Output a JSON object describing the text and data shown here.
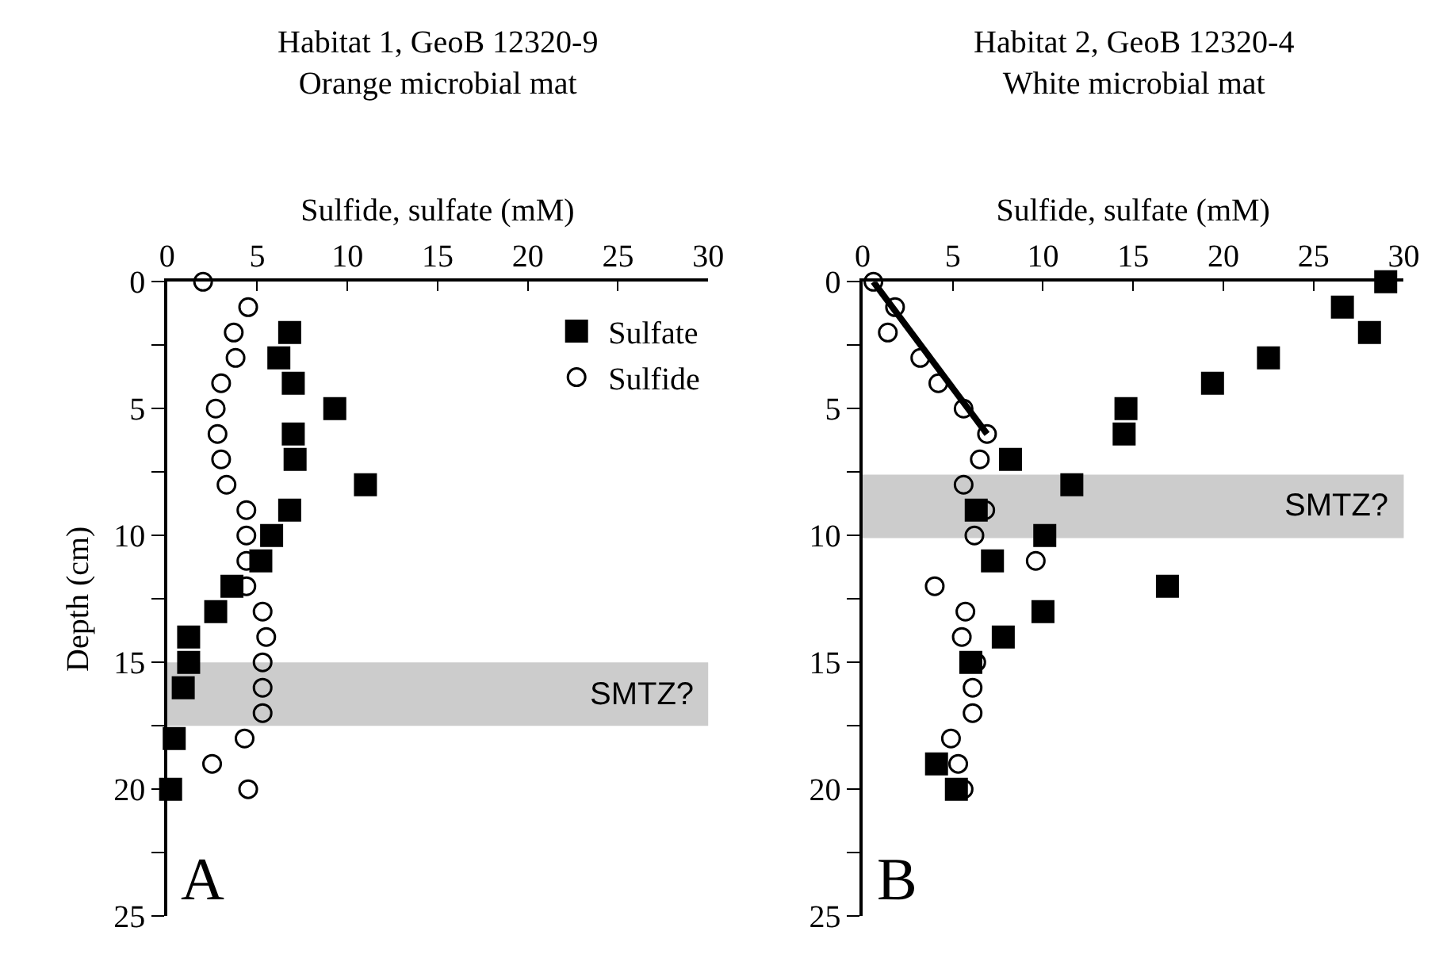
{
  "chart_data": [
    {
      "type": "scatter",
      "title": "Habitat 1, GeoB 12320-9\nOrange microbial mat",
      "xlabel": "Sulfide, sulfate (mM)",
      "ylabel": "Depth (cm)",
      "xlim": [
        0,
        30
      ],
      "xticks": [
        0,
        5,
        10,
        15,
        20,
        25,
        30
      ],
      "ylim": [
        25,
        0
      ],
      "yticks": [
        0,
        {
          "value": 2.5,
          "label": null
        },
        5,
        {
          "value": 7.5,
          "label": null
        },
        10,
        {
          "value": 12.5,
          "label": null
        },
        15,
        {
          "value": 17.5,
          "label": null
        },
        20,
        {
          "value": 22.5,
          "label": null
        },
        25
      ],
      "grid": false,
      "legend": "top right",
      "series": [
        {
          "name": "Sulfate",
          "color": "#000000",
          "marker": "square",
          "x": [
            6.8,
            6.2,
            7.0,
            9.3,
            7.0,
            7.1,
            11.0,
            6.8,
            5.8,
            5.2,
            3.6,
            2.7,
            1.2,
            1.2,
            0.9,
            0.4,
            0.2
          ],
          "values": [
            2,
            3,
            4,
            5,
            6,
            7,
            8,
            9,
            10,
            11,
            12,
            13,
            14,
            15,
            16,
            18,
            20
          ]
        },
        {
          "name": "Sulfide",
          "color": "#000000",
          "marker": "circle",
          "x": [
            2.0,
            4.5,
            3.7,
            3.8,
            3.0,
            2.7,
            2.8,
            3.0,
            3.3,
            4.4,
            4.4,
            4.4,
            4.4,
            5.3,
            5.5,
            5.3,
            5.3,
            5.3,
            4.3,
            2.5,
            4.5
          ],
          "values": [
            0,
            1,
            2,
            3,
            4,
            5,
            6,
            7,
            8,
            9,
            10,
            11,
            12,
            13,
            14,
            15,
            16,
            17,
            18,
            19,
            20
          ]
        }
      ],
      "bands": [
        {
          "axis": "y",
          "from": 15,
          "to": 17.5,
          "label": "SMTZ?",
          "color": "#cccccc"
        }
      ],
      "annotations": [
        "A"
      ]
    },
    {
      "type": "scatter",
      "title": "Habitat 2, GeoB 12320-4\nWhite microbial mat",
      "xlabel": "Sulfide, sulfate (mM)",
      "xlim": [
        0,
        30
      ],
      "xticks": [
        0,
        5,
        10,
        15,
        20,
        25,
        30
      ],
      "ylim": [
        25,
        0
      ],
      "yticks": [
        0,
        {
          "value": 2.5,
          "label": null
        },
        5,
        {
          "value": 7.5,
          "label": null
        },
        10,
        {
          "value": 12.5,
          "label": null
        },
        15,
        {
          "value": 17.5,
          "label": null
        },
        20,
        {
          "value": 22.5,
          "label": null
        },
        25
      ],
      "grid": false,
      "series": [
        {
          "color": "#000000",
          "marker": "square",
          "x": [
            29.0,
            26.6,
            28.1,
            22.5,
            19.4,
            14.6,
            14.5,
            8.2,
            11.6,
            6.3,
            10.1,
            7.2,
            16.9,
            10.0,
            7.8,
            6.0,
            4.1,
            5.2
          ],
          "values": [
            0,
            1,
            2,
            3,
            4,
            5,
            6,
            7,
            8,
            9,
            10,
            11,
            12,
            13,
            14,
            15,
            19,
            20
          ]
        },
        {
          "color": "#000000",
          "marker": "circle",
          "x": [
            0.6,
            1.8,
            1.4,
            3.2,
            4.2,
            5.6,
            6.9,
            6.5,
            5.6,
            6.8,
            6.2,
            9.6,
            4.0,
            5.7,
            5.5,
            6.3,
            6.1,
            6.1,
            4.9,
            5.3,
            5.6
          ],
          "values": [
            0,
            1,
            2,
            3,
            4,
            5,
            6,
            7,
            8,
            9,
            10,
            11,
            12,
            13,
            14,
            15,
            16,
            17,
            18,
            19,
            20
          ]
        },
        {
          "type": "line",
          "color": "#000000",
          "line_style": "solid",
          "x": [
            0.6,
            6.9
          ],
          "values": [
            0,
            6
          ]
        }
      ],
      "bands": [
        {
          "axis": "y",
          "from": 7.6,
          "to": 10.1,
          "label": "SMTZ?",
          "color": "#cccccc"
        }
      ],
      "annotations": [
        "B"
      ]
    }
  ]
}
